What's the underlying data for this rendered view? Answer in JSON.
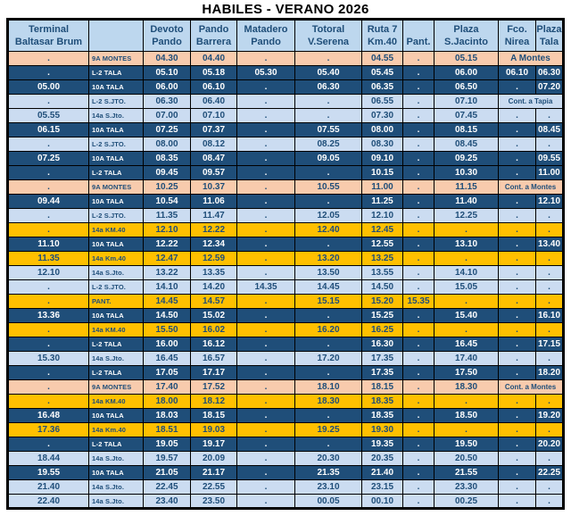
{
  "title": "HABILES - VERANO 2026",
  "colors": {
    "header_bg": "#BDD7EE",
    "navy_row": "#1F4E79",
    "light_blue_row": "#CBDCF1",
    "orange_row": "#F8CBAD",
    "yellow_row": "#FFC000",
    "navy_text": "#1F4E79",
    "white_text": "#FFFFFF",
    "border": "#000000"
  },
  "table": {
    "columns": [
      {
        "id": "terminal",
        "lines": [
          "Terminal",
          "Baltasar Brum"
        ]
      },
      {
        "id": "route",
        "lines": [
          "",
          ""
        ]
      },
      {
        "id": "devoto",
        "lines": [
          "Devoto",
          "Pando"
        ]
      },
      {
        "id": "barrera",
        "lines": [
          "Pando",
          "Barrera"
        ]
      },
      {
        "id": "matadero",
        "lines": [
          "Matadero",
          "Pando"
        ]
      },
      {
        "id": "totoral",
        "lines": [
          "Totoral",
          "V.Serena"
        ]
      },
      {
        "id": "ruta7",
        "lines": [
          "Ruta 7",
          "Km.40"
        ]
      },
      {
        "id": "pant",
        "lines": [
          "",
          "Pant."
        ]
      },
      {
        "id": "sjacinto",
        "lines": [
          "Plaza",
          "S.Jacinto"
        ]
      },
      {
        "id": "nirea",
        "lines": [
          "Fco.",
          "Nirea"
        ]
      },
      {
        "id": "tala",
        "lines": [
          "Plaza",
          "Tala"
        ]
      }
    ],
    "rows": [
      {
        "style": "orange",
        "cells": [
          ".",
          "9A MONTES",
          "04.30",
          "04.40",
          ".",
          ".",
          "04.55",
          ".",
          "05.15"
        ],
        "note": "A Montes"
      },
      {
        "style": "navy",
        "cells": [
          ".",
          "L-2 TALA",
          "05.10",
          "05.18",
          "05.30",
          "05.40",
          "05.45",
          ".",
          "06.00",
          "06.10",
          "06.30"
        ]
      },
      {
        "style": "navy",
        "cells": [
          "05.00",
          "10A TALA",
          "06.00",
          "06.10",
          ".",
          "06.30",
          "06.35",
          ".",
          "06.50",
          ".",
          "07.20"
        ]
      },
      {
        "style": "lblue",
        "cells": [
          ".",
          "L-2 S.JTO.",
          "06.30",
          "06.40",
          ".",
          ".",
          "06.55",
          ".",
          "07.10"
        ],
        "note": "Cont. a Tapia"
      },
      {
        "style": "lblue",
        "cells": [
          "05.55",
          "14a S.Jto.",
          "07.00",
          "07.10",
          ".",
          ".",
          "07.30",
          ".",
          "07.45",
          ".",
          "."
        ]
      },
      {
        "style": "navy",
        "cells": [
          "06.15",
          "10A TALA",
          "07.25",
          "07.37",
          ".",
          "07.55",
          "08.00",
          ".",
          "08.15",
          ".",
          "08.45"
        ]
      },
      {
        "style": "lblue",
        "cells": [
          ".",
          "L-2 S.JTO.",
          "08.00",
          "08.12",
          ".",
          "08.25",
          "08.30",
          ".",
          "08.45",
          ".",
          "."
        ]
      },
      {
        "style": "navy",
        "cells": [
          "07.25",
          "10A TALA",
          "08.35",
          "08.47",
          ".",
          "09.05",
          "09.10",
          ".",
          "09.25",
          ".",
          "09.55"
        ]
      },
      {
        "style": "navy",
        "cells": [
          ".",
          "L-2 TALA",
          "09.45",
          "09.57",
          ".",
          ".",
          "10.15",
          ".",
          "10.30",
          ".",
          "11.00"
        ]
      },
      {
        "style": "orange",
        "cells": [
          ".",
          "9A MONTES",
          "10.25",
          "10.37",
          ".",
          "10.55",
          "11.00",
          ".",
          "11.15"
        ],
        "note": "Cont. a Montes"
      },
      {
        "style": "navy",
        "cells": [
          "09.44",
          "10A TALA",
          "10.54",
          "11.06",
          ".",
          ".",
          "11.25",
          ".",
          "11.40",
          ".",
          "12.10"
        ]
      },
      {
        "style": "lblue",
        "cells": [
          ".",
          "L-2 S.JTO.",
          "11.35",
          "11.47",
          ".",
          "12.05",
          "12.10",
          ".",
          "12.25",
          ".",
          "."
        ]
      },
      {
        "style": "yellow",
        "cells": [
          ".",
          "14a KM.40",
          "12.10",
          "12.22",
          ".",
          "12.40",
          "12.45",
          ".",
          ".",
          ".",
          "."
        ]
      },
      {
        "style": "navy",
        "cells": [
          "11.10",
          "10A TALA",
          "12.22",
          "12.34",
          ".",
          ".",
          "12.55",
          ".",
          "13.10",
          ".",
          "13.40"
        ]
      },
      {
        "style": "yellow",
        "cells": [
          "11.35",
          "14a Km.40",
          "12.47",
          "12.59",
          ".",
          "13.20",
          "13.25",
          ".",
          ".",
          ".",
          "."
        ]
      },
      {
        "style": "lblue",
        "cells": [
          "12.10",
          "14a S.Jto.",
          "13.22",
          "13.35",
          ".",
          "13.50",
          "13.55",
          ".",
          "14.10",
          ".",
          "."
        ]
      },
      {
        "style": "lblue",
        "cells": [
          ".",
          "L-2 S.JTO.",
          "14.10",
          "14.20",
          "14.35",
          "14.45",
          "14.50",
          ".",
          "15.05",
          ".",
          "."
        ]
      },
      {
        "style": "yellow",
        "cells": [
          ".",
          "PANT.",
          "14.45",
          "14.57",
          ".",
          "15.15",
          "15.20",
          "15.35",
          ".",
          ".",
          "."
        ]
      },
      {
        "style": "navy",
        "cells": [
          "13.36",
          "10A TALA",
          "14.50",
          "15.02",
          ".",
          ".",
          "15.25",
          ".",
          "15.40",
          ".",
          "16.10"
        ]
      },
      {
        "style": "yellow",
        "cells": [
          ".",
          "14a KM.40",
          "15.50",
          "16.02",
          ".",
          "16.20",
          "16.25",
          ".",
          ".",
          ".",
          "."
        ]
      },
      {
        "style": "navy",
        "cells": [
          ".",
          "L-2 TALA",
          "16.00",
          "16.12",
          ".",
          ".",
          "16.30",
          ".",
          "16.45",
          ".",
          "17.15"
        ]
      },
      {
        "style": "lblue",
        "cells": [
          "15.30",
          "14a S.Jto.",
          "16.45",
          "16.57",
          ".",
          "17.20",
          "17.35",
          ".",
          "17.40",
          ".",
          "."
        ]
      },
      {
        "style": "navy",
        "cells": [
          ".",
          "L-2 TALA",
          "17.05",
          "17.17",
          ".",
          ".",
          "17.35",
          ".",
          "17.50",
          ".",
          "18.20"
        ]
      },
      {
        "style": "orange",
        "cells": [
          ".",
          "9A MONTES",
          "17.40",
          "17.52",
          ".",
          "18.10",
          "18.15",
          ".",
          "18.30"
        ],
        "note": "Cont. a Montes"
      },
      {
        "style": "yellow",
        "cells": [
          ".",
          "14a KM.40",
          "18.00",
          "18.12",
          ".",
          "18.30",
          "18.35",
          ".",
          ".",
          ".",
          "."
        ]
      },
      {
        "style": "navy",
        "cells": [
          "16.48",
          "10A TALA",
          "18.03",
          "18.15",
          ".",
          ".",
          "18.35",
          ".",
          "18.50",
          ".",
          "19.20"
        ]
      },
      {
        "style": "yellow",
        "cells": [
          "17.36",
          "14a Km.40",
          "18.51",
          "19.03",
          ".",
          "19.25",
          "19.30",
          ".",
          ".",
          ".",
          "."
        ]
      },
      {
        "style": "navy",
        "cells": [
          ".",
          "L-2 TALA",
          "19.05",
          "19.17",
          ".",
          ".",
          "19.35",
          ".",
          "19.50",
          ".",
          "20.20"
        ]
      },
      {
        "style": "lblue",
        "cells": [
          "18.44",
          "14a S.Jto.",
          "19.57",
          "20.09",
          ".",
          "20.30",
          "20.35",
          ".",
          "20.50",
          ".",
          "."
        ]
      },
      {
        "style": "navy",
        "cells": [
          "19.55",
          "10A TALA",
          "21.05",
          "21.17",
          ".",
          "21.35",
          "21.40",
          ".",
          "21.55",
          ".",
          "22.25"
        ]
      },
      {
        "style": "lblue",
        "cells": [
          "21.40",
          "14a S.Jto.",
          "22.45",
          "22.55",
          ".",
          "23.10",
          "23.15",
          ".",
          "23.30",
          ".",
          "."
        ]
      },
      {
        "style": "lblue",
        "cells": [
          "22.40",
          "14a S.Jto.",
          "23.40",
          "23.50",
          ".",
          "00.05",
          "00.10",
          ".",
          "00.25",
          ".",
          "."
        ]
      }
    ]
  }
}
